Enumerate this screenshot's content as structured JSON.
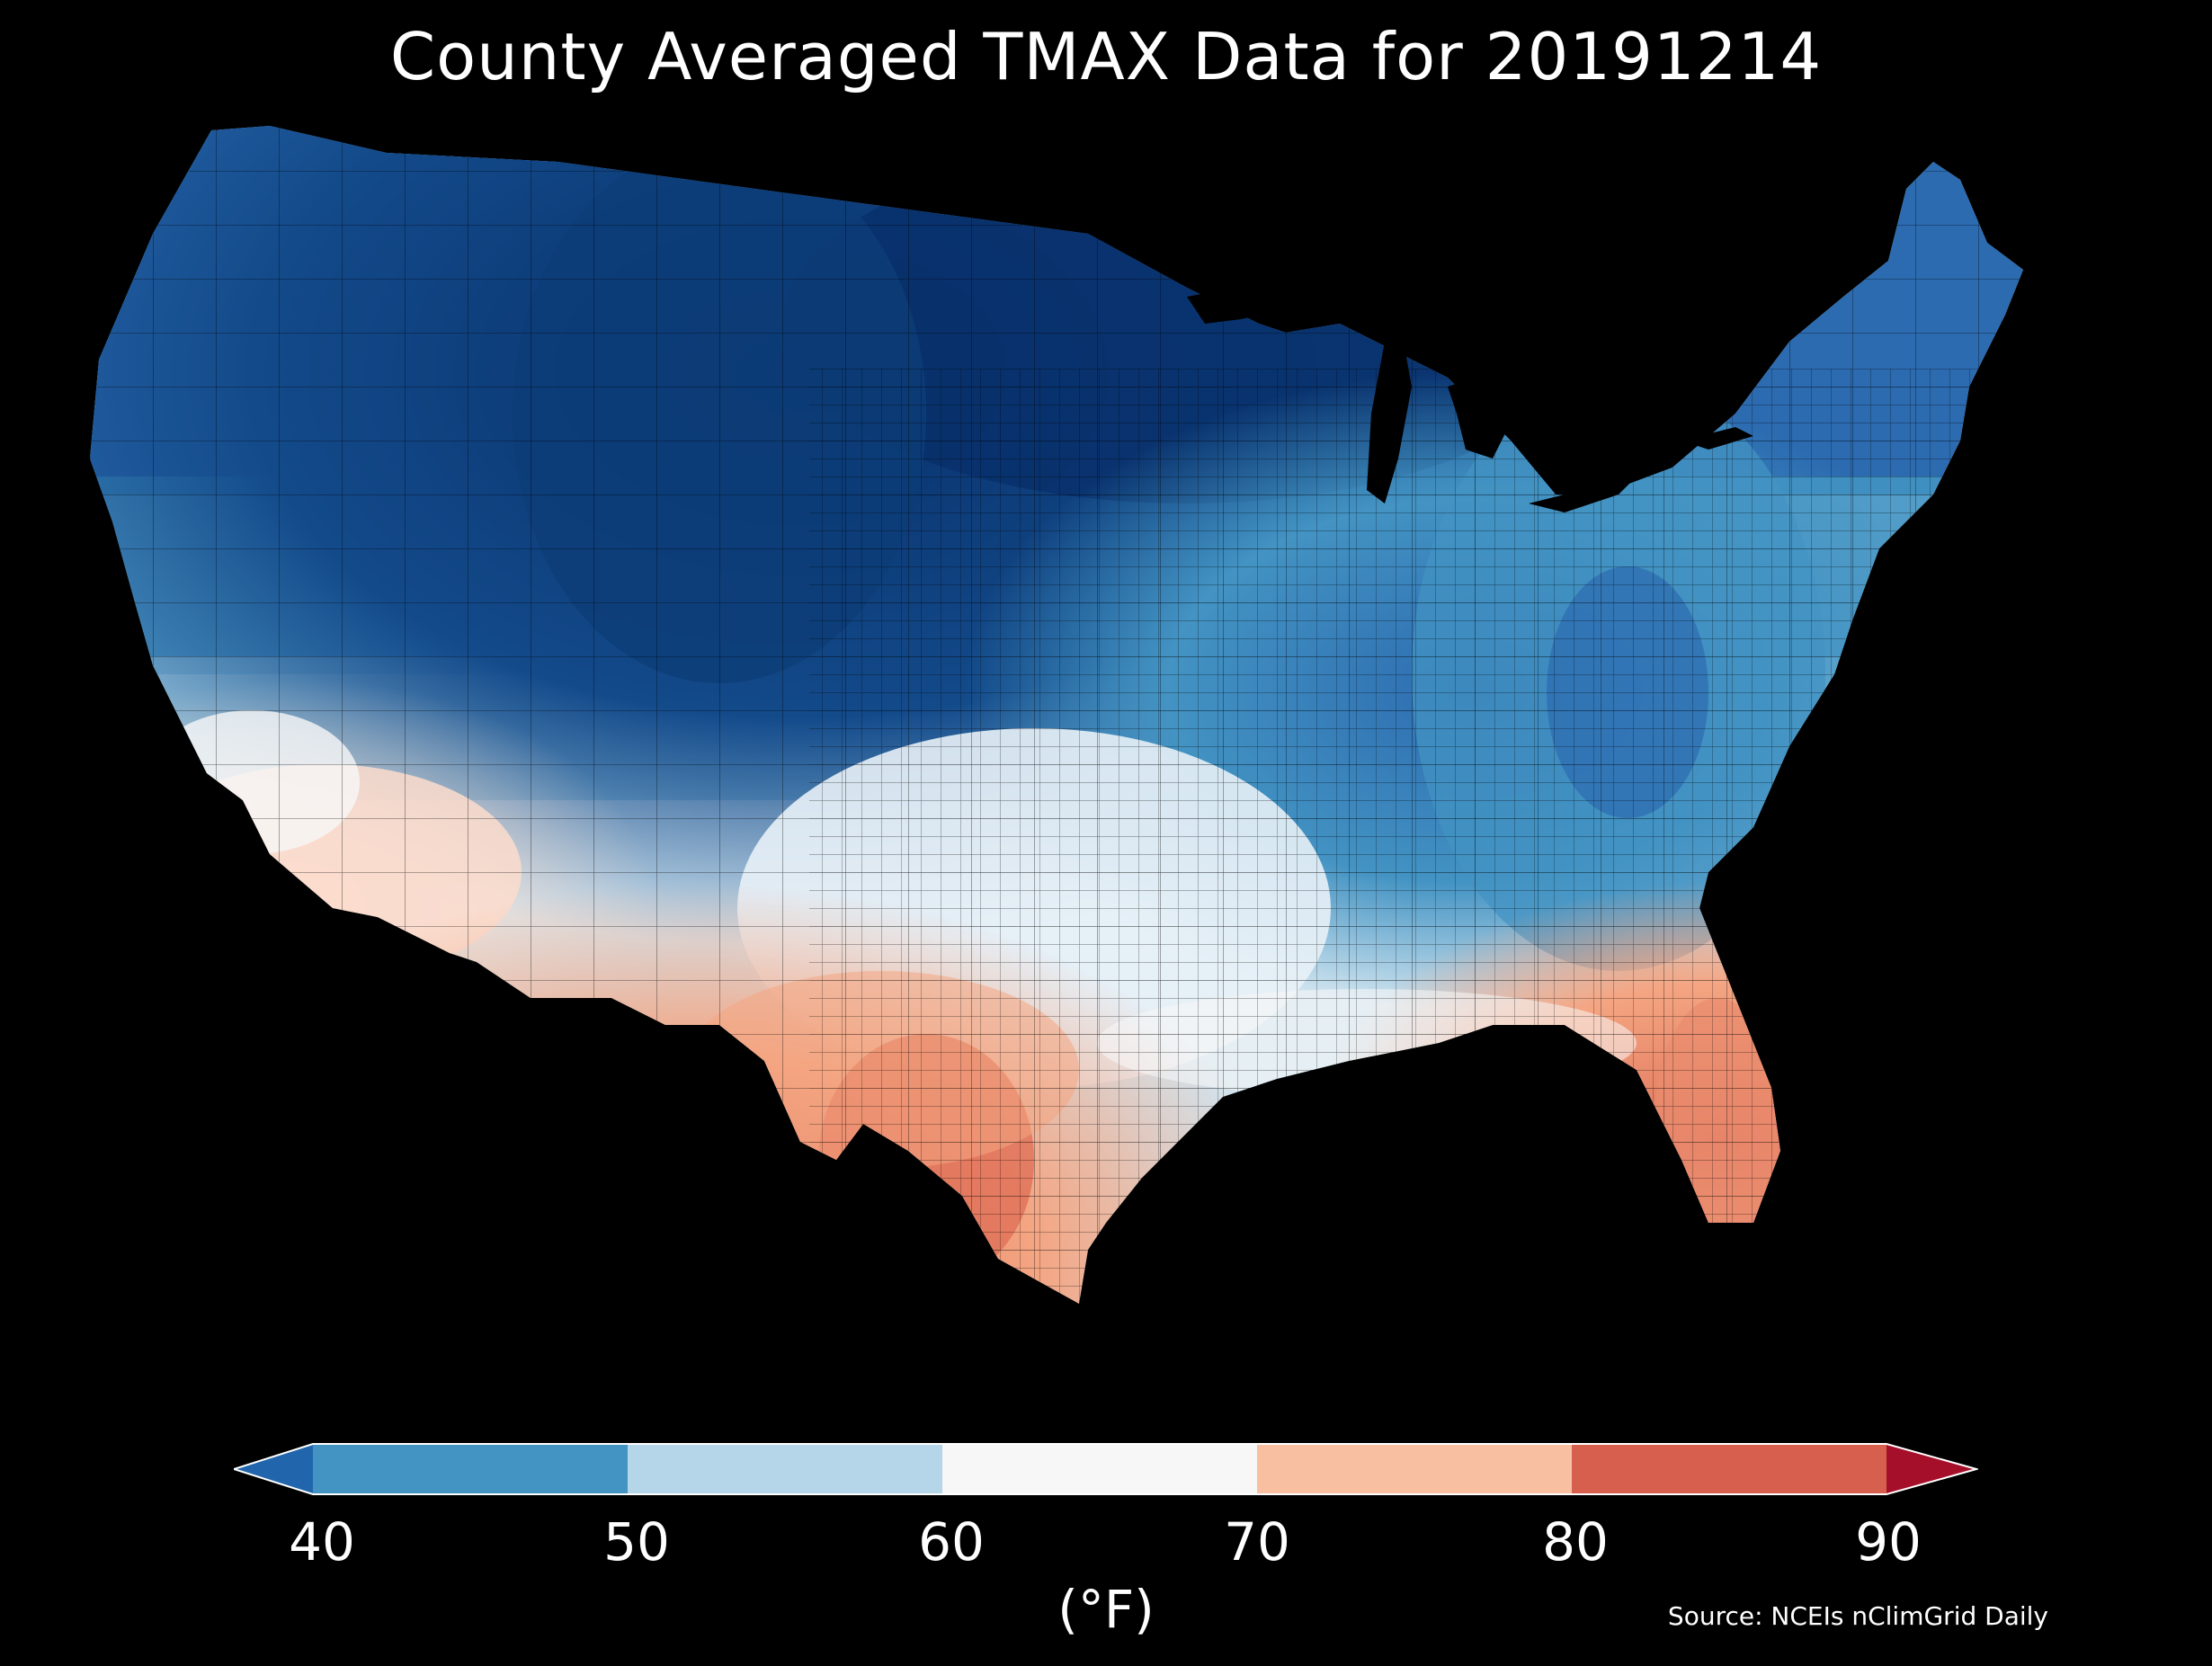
{
  "title": "County Averaged TMAX Data for 20191214",
  "colorbar": {
    "ticks": [
      "40",
      "50",
      "60",
      "70",
      "80",
      "90"
    ],
    "unit_label": "(°F)",
    "segments": [
      {
        "range": "<40",
        "color": "#2166ac"
      },
      {
        "range": "40-50",
        "color": "#4393c3"
      },
      {
        "range": "50-60",
        "color": "#b5d6e8"
      },
      {
        "range": "60-70",
        "color": "#f7f7f7"
      },
      {
        "range": "70-80",
        "color": "#f8c0a0"
      },
      {
        "range": "80-90",
        "color": "#d6604d"
      },
      {
        "range": ">90",
        "color": "#a50f2a"
      }
    ]
  },
  "source": "Source: NCEIs nClimGrid Daily",
  "map": {
    "region": "contiguous-united-states",
    "unit": "county",
    "variable": "TMAX",
    "colors": {
      "background": "#000000",
      "darkest_blue": "#08306b",
      "dark_blue": "#134a8a",
      "mid_blue": "#2c6bb0",
      "blue": "#4393c3",
      "light_blue": "#92c5de",
      "pale_blue": "#d1e5f0",
      "white": "#f7f7f7",
      "pale_red": "#fbdccc",
      "light_red": "#f4a582",
      "red": "#e07058",
      "dark_red": "#d6604d"
    }
  }
}
